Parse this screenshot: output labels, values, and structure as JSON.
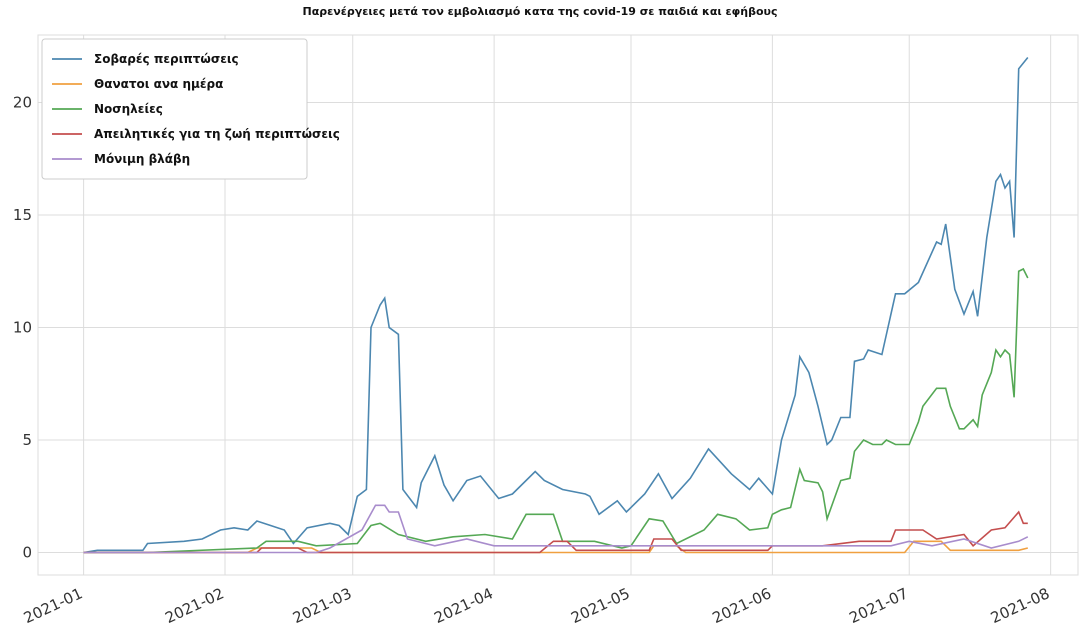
{
  "chart_data": {
    "type": "line",
    "title": "Παρενέργειες μετά τον εμβολιασμό κατα της covid-19 σε παιδιά και εφήβους",
    "xlim": [
      -10,
      218
    ],
    "ylim": [
      -1,
      23
    ],
    "xticks": [
      {
        "value": 0,
        "label": "2021-01"
      },
      {
        "value": 31,
        "label": "2021-02"
      },
      {
        "value": 59,
        "label": "2021-03"
      },
      {
        "value": 90,
        "label": "2021-04"
      },
      {
        "value": 120,
        "label": "2021-05"
      },
      {
        "value": 151,
        "label": "2021-06"
      },
      {
        "value": 181,
        "label": "2021-07"
      },
      {
        "value": 212,
        "label": "2021-08"
      }
    ],
    "yticks": [
      0,
      5,
      10,
      15,
      20
    ],
    "grid": true,
    "legend": "upper left",
    "series": [
      {
        "name": "Σοβαρές περιπτώσεις",
        "color": "#4c87b0",
        "x": [
          0,
          3,
          13,
          14,
          22,
          26,
          30,
          33,
          36,
          38,
          41,
          44,
          46,
          49,
          54,
          56,
          58,
          60,
          62,
          63,
          65,
          66,
          67,
          69,
          70,
          73,
          74,
          77,
          79,
          81,
          84,
          87,
          91,
          94,
          99,
          101,
          105,
          110,
          111,
          113,
          117,
          119,
          123,
          126,
          129,
          133,
          137,
          142,
          146,
          148,
          151,
          153,
          156,
          157,
          159,
          161,
          163,
          164,
          166,
          168,
          169,
          171,
          172,
          175,
          178,
          180,
          183,
          187,
          188,
          189,
          191,
          193,
          195,
          196,
          198,
          200,
          201,
          202,
          203,
          204,
          205,
          207
        ],
        "values": [
          0,
          0.1,
          0.1,
          0.4,
          0.5,
          0.6,
          1.0,
          1.1,
          1.0,
          1.4,
          1.2,
          1.0,
          0.4,
          1.1,
          1.3,
          1.2,
          0.8,
          2.5,
          2.8,
          10,
          11,
          11.3,
          10,
          9.7,
          2.8,
          2.0,
          3.1,
          4.3,
          3.0,
          2.3,
          3.2,
          3.4,
          2.4,
          2.6,
          3.6,
          3.2,
          2.8,
          2.6,
          2.5,
          1.7,
          2.3,
          1.8,
          2.6,
          3.5,
          2.4,
          3.3,
          4.6,
          3.5,
          2.8,
          3.3,
          2.6,
          5.0,
          7.0,
          8.7,
          8.0,
          6.5,
          4.8,
          5.0,
          6.0,
          6.0,
          8.5,
          8.6,
          9.0,
          8.8,
          11.5,
          11.5,
          12.0,
          13.8,
          13.7,
          14.6,
          11.7,
          10.6,
          11.6,
          10.5,
          14.0,
          16.5,
          16.8,
          16.2,
          16.5,
          14.0,
          21.5,
          22.0
        ]
      },
      {
        "name": "Θανατοι ανα ημέρα",
        "color": "#f0a040",
        "x": [
          0,
          36,
          38,
          50,
          52,
          124,
          125,
          130,
          132,
          180,
          182,
          188,
          190,
          205,
          207
        ],
        "values": [
          0,
          0,
          0.2,
          0.2,
          0,
          0,
          0.3,
          0.3,
          0,
          0,
          0.5,
          0.5,
          0.1,
          0.1,
          0.2
        ]
      },
      {
        "name": "Νοσηλείες",
        "color": "#55a855",
        "x": [
          0,
          14,
          38,
          40,
          47,
          51,
          60,
          63,
          65,
          69,
          75,
          81,
          88,
          94,
          97,
          103,
          105,
          112,
          118,
          120,
          124,
          127,
          130,
          136,
          139,
          143,
          146,
          150,
          151,
          153,
          155,
          157,
          158,
          161,
          162,
          163,
          166,
          168,
          169,
          171,
          173,
          175,
          176,
          178,
          181,
          183,
          184,
          187,
          189,
          190,
          192,
          193,
          195,
          196,
          197,
          199,
          200,
          201,
          202,
          203,
          204,
          205,
          206,
          207
        ],
        "values": [
          0,
          0,
          0.2,
          0.5,
          0.5,
          0.3,
          0.4,
          1.2,
          1.3,
          0.8,
          0.5,
          0.7,
          0.8,
          0.6,
          1.7,
          1.7,
          0.5,
          0.5,
          0.2,
          0.3,
          1.5,
          1.4,
          0.4,
          1.0,
          1.7,
          1.5,
          1.0,
          1.1,
          1.7,
          1.9,
          2.0,
          3.7,
          3.2,
          3.1,
          2.7,
          1.5,
          3.2,
          3.3,
          4.5,
          5.0,
          4.8,
          4.8,
          5.0,
          4.8,
          4.8,
          5.8,
          6.5,
          7.3,
          7.3,
          6.5,
          5.5,
          5.5,
          5.9,
          5.6,
          7.0,
          8.0,
          9.0,
          8.7,
          9.0,
          8.8,
          6.9,
          12.5,
          12.6,
          12.2
        ]
      },
      {
        "name": "Απειλητικές για τη ζωή περιπτώσεις",
        "color": "#c44e4e",
        "x": [
          0,
          38,
          39,
          47,
          49,
          100,
          103,
          106,
          108,
          124,
          125,
          129,
          131,
          150,
          151,
          162,
          170,
          177,
          178,
          184,
          187,
          193,
          195,
          199,
          202,
          205,
          206,
          207
        ],
        "values": [
          0,
          0,
          0.2,
          0.2,
          0,
          0,
          0.5,
          0.5,
          0.1,
          0.1,
          0.6,
          0.6,
          0.1,
          0.1,
          0.3,
          0.3,
          0.5,
          0.5,
          1.0,
          1.0,
          0.6,
          0.8,
          0.3,
          1.0,
          1.1,
          1.8,
          1.3,
          1.3
        ]
      },
      {
        "name": "Μόνιμη βλάβη",
        "color": "#a88ccc",
        "x": [
          0,
          51,
          54,
          61,
          64,
          66,
          67,
          69,
          71,
          77,
          84,
          90,
          150,
          177,
          181,
          186,
          193,
          199,
          205,
          207
        ],
        "values": [
          0,
          0,
          0.2,
          1.0,
          2.1,
          2.1,
          1.8,
          1.8,
          0.6,
          0.3,
          0.6,
          0.3,
          0.3,
          0.3,
          0.5,
          0.3,
          0.6,
          0.2,
          0.5,
          0.7
        ]
      }
    ]
  }
}
